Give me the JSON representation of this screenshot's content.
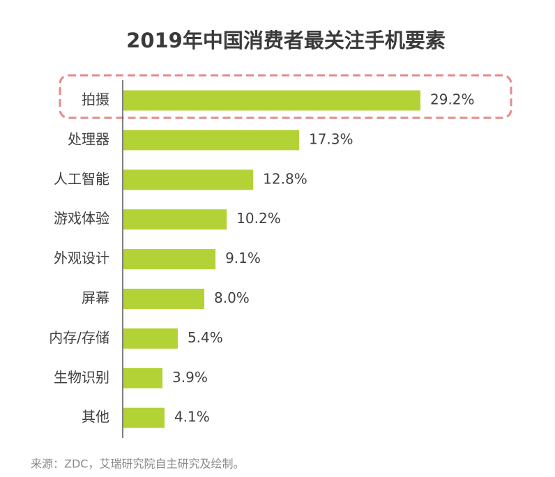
{
  "chart_data": {
    "type": "bar",
    "orientation": "horizontal",
    "title": "2019年中国消费者最关注手机要素",
    "categories": [
      "拍摄",
      "处理器",
      "人工智能",
      "游戏体验",
      "外观设计",
      "屏幕",
      "内存/存储",
      "生物识别",
      "其他"
    ],
    "values": [
      29.2,
      17.3,
      12.8,
      10.2,
      9.1,
      8.0,
      5.4,
      3.9,
      4.1
    ],
    "value_labels": [
      "29.2%",
      "17.3%",
      "12.8%",
      "10.2%",
      "9.1%",
      "8.0%",
      "5.4%",
      "3.9%",
      "4.1%"
    ],
    "color": "#b3d236",
    "source": "来源：ZDC，艾瑞研究院自主研究及绘制。"
  }
}
